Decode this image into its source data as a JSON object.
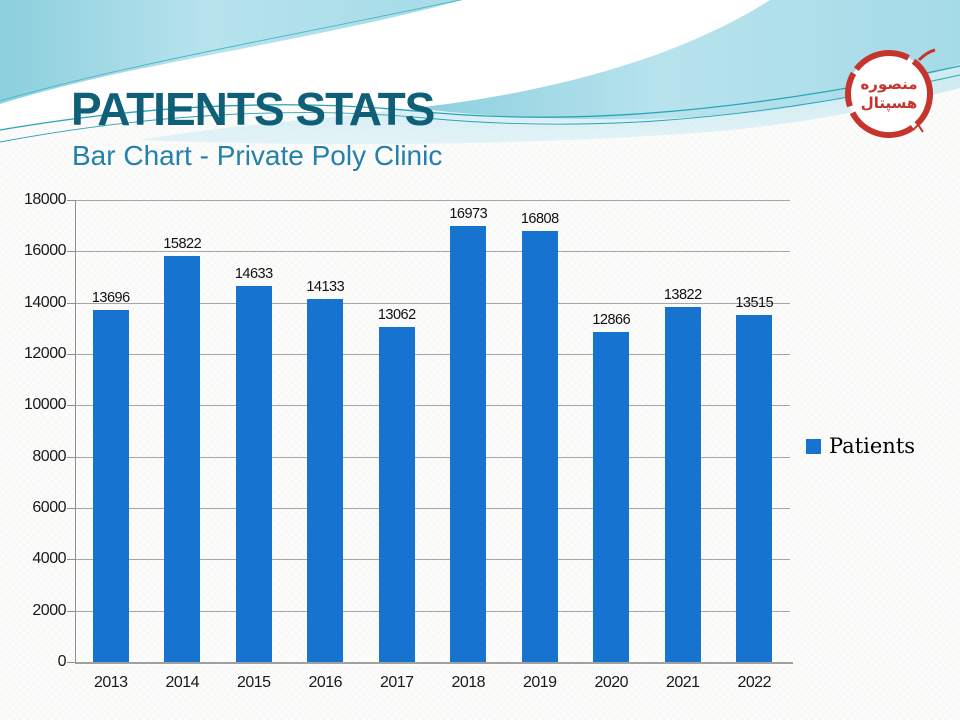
{
  "slide": {
    "title": "PATIENTS STATS",
    "subtitle": "Bar Chart - Private Poly Clinic"
  },
  "logo": {
    "line1": "منصوره",
    "line2": "هسپتال",
    "color": "#c5352e"
  },
  "chart_data": {
    "type": "bar",
    "title": "",
    "xlabel": "",
    "ylabel": "",
    "categories": [
      "2013",
      "2014",
      "2015",
      "2016",
      "2017",
      "2018",
      "2019",
      "2020",
      "2021",
      "2022"
    ],
    "series": [
      {
        "name": "Patients",
        "color": "#1673d0",
        "values": [
          13696,
          15822,
          14633,
          14133,
          13062,
          16973,
          16808,
          12866,
          13822,
          13515
        ]
      }
    ],
    "ylim": [
      0,
      18000
    ],
    "yticks": [
      0,
      2000,
      4000,
      6000,
      8000,
      10000,
      12000,
      14000,
      16000,
      18000
    ],
    "grid": true,
    "data_labels": true,
    "legend_position": "right"
  },
  "colors": {
    "title_text": "#0e5f77",
    "subtitle_text": "#2381ab",
    "bar_fill": "#1673d0",
    "gridline": "#a6a6a6",
    "wave_cyan": "#9ed7e4",
    "wave_line": "#2aa3b5",
    "logo_red": "#c5352e"
  }
}
